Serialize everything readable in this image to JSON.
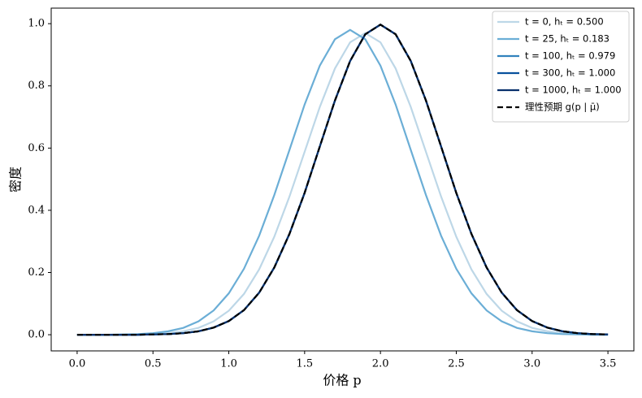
{
  "chart_data": {
    "type": "line",
    "xlabel": "价格 p",
    "ylabel": "密度",
    "x": [
      0,
      0.1,
      0.2,
      0.3,
      0.4,
      0.5,
      0.6,
      0.7,
      0.8,
      0.9,
      1.0,
      1.1,
      1.2,
      1.3,
      1.4,
      1.5,
      1.6,
      1.7,
      1.8,
      1.9,
      2.0,
      2.1,
      2.2,
      2.3,
      2.4,
      2.5,
      2.6,
      2.7,
      2.8,
      2.9,
      3.0,
      3.1,
      3.2,
      3.3,
      3.4,
      3.5
    ],
    "series": [
      {
        "name": "t = 0, hₜ = 0.500",
        "color": "#bdd7e7",
        "linestyle": "solid",
        "values": [
          0,
          0,
          0,
          0,
          0.001,
          0.002,
          0.005,
          0.011,
          0.022,
          0.043,
          0.077,
          0.131,
          0.21,
          0.315,
          0.444,
          0.588,
          0.732,
          0.856,
          0.94,
          0.97,
          0.94,
          0.856,
          0.732,
          0.588,
          0.444,
          0.315,
          0.21,
          0.131,
          0.077,
          0.043,
          0.022,
          0.011,
          0.005,
          0.002,
          0.001,
          0
        ]
      },
      {
        "name": "t = 25, hₜ = 0.183",
        "color": "#6baed6",
        "linestyle": "solid",
        "values": [
          0,
          0,
          0,
          0.001,
          0.002,
          0.005,
          0.011,
          0.022,
          0.043,
          0.078,
          0.133,
          0.212,
          0.318,
          0.449,
          0.594,
          0.74,
          0.865,
          0.95,
          0.98,
          0.95,
          0.865,
          0.74,
          0.594,
          0.449,
          0.318,
          0.212,
          0.133,
          0.078,
          0.043,
          0.022,
          0.011,
          0.005,
          0.002,
          0.001,
          0,
          0
        ]
      },
      {
        "name": "t = 100, hₜ = 0.979",
        "color": "#3182bd",
        "linestyle": "solid",
        "values": [
          0,
          0,
          0,
          0,
          0,
          0.001,
          0.002,
          0.005,
          0.011,
          0.023,
          0.044,
          0.079,
          0.135,
          0.216,
          0.324,
          0.456,
          0.605,
          0.753,
          0.88,
          0.966,
          0.997,
          0.966,
          0.88,
          0.753,
          0.605,
          0.456,
          0.324,
          0.216,
          0.135,
          0.079,
          0.044,
          0.023,
          0.011,
          0.005,
          0.002,
          0.001
        ]
      },
      {
        "name": "t = 300, hₜ = 1.000",
        "color": "#08519c",
        "linestyle": "solid",
        "values": [
          0,
          0,
          0,
          0,
          0,
          0.001,
          0.002,
          0.005,
          0.011,
          0.023,
          0.044,
          0.079,
          0.135,
          0.216,
          0.324,
          0.456,
          0.605,
          0.753,
          0.88,
          0.966,
          0.997,
          0.966,
          0.88,
          0.753,
          0.605,
          0.456,
          0.324,
          0.216,
          0.135,
          0.079,
          0.044,
          0.023,
          0.011,
          0.005,
          0.002,
          0.001
        ]
      },
      {
        "name": "t = 1000, hₜ = 1.000",
        "color": "#08306b",
        "linestyle": "solid",
        "values": [
          0,
          0,
          0,
          0,
          0,
          0.001,
          0.002,
          0.005,
          0.011,
          0.023,
          0.044,
          0.079,
          0.135,
          0.216,
          0.324,
          0.456,
          0.605,
          0.753,
          0.88,
          0.966,
          0.997,
          0.966,
          0.88,
          0.753,
          0.605,
          0.456,
          0.324,
          0.216,
          0.135,
          0.079,
          0.044,
          0.023,
          0.011,
          0.005,
          0.002,
          0.001
        ]
      },
      {
        "name": "理性预期 g(p | μ̄)",
        "color": "#000000",
        "linestyle": "dashed",
        "values": [
          0,
          0,
          0,
          0,
          0,
          0.001,
          0.002,
          0.005,
          0.011,
          0.023,
          0.044,
          0.079,
          0.135,
          0.216,
          0.324,
          0.456,
          0.605,
          0.753,
          0.88,
          0.966,
          0.997,
          0.966,
          0.88,
          0.753,
          0.605,
          0.456,
          0.324,
          0.216,
          0.135,
          0.079,
          0.044,
          0.023,
          0.011,
          0.005,
          0.002,
          0.001
        ]
      }
    ],
    "xlim": [
      -0.171,
      3.671
    ],
    "ylim": [
      -0.052,
      1.05
    ],
    "xticks": [
      {
        "value": 0,
        "label": "0.0"
      },
      0.5,
      {
        "value": 1,
        "label": "1.0"
      },
      1.5,
      {
        "value": 2,
        "label": "2.0"
      },
      2.5,
      {
        "value": 3,
        "label": "3.0"
      },
      3.5
    ],
    "yticks": [
      {
        "value": 0,
        "label": "0.0"
      },
      0.2,
      0.4,
      0.6,
      0.8,
      {
        "value": 1,
        "label": "1.0"
      }
    ],
    "legend": "upper right",
    "grid": false
  }
}
